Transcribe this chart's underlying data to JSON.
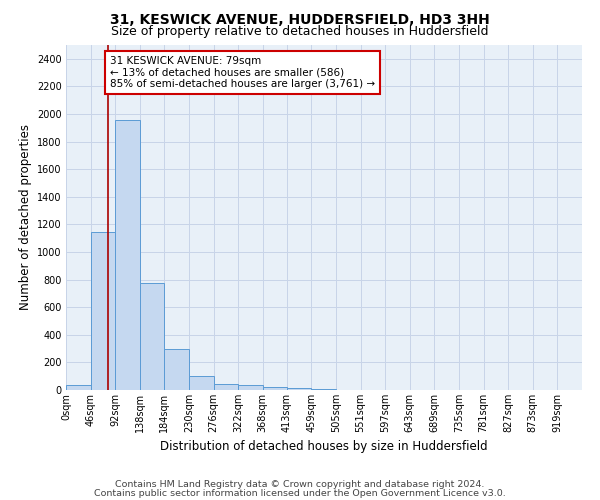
{
  "title1": "31, KESWICK AVENUE, HUDDERSFIELD, HD3 3HH",
  "title2": "Size of property relative to detached houses in Huddersfield",
  "xlabel": "Distribution of detached houses by size in Huddersfield",
  "ylabel": "Number of detached properties",
  "footer1": "Contains HM Land Registry data © Crown copyright and database right 2024.",
  "footer2": "Contains public sector information licensed under the Open Government Licence v3.0.",
  "bin_labels": [
    "0sqm",
    "46sqm",
    "92sqm",
    "138sqm",
    "184sqm",
    "230sqm",
    "276sqm",
    "322sqm",
    "368sqm",
    "413sqm",
    "459sqm",
    "505sqm",
    "551sqm",
    "597sqm",
    "643sqm",
    "689sqm",
    "735sqm",
    "781sqm",
    "827sqm",
    "873sqm",
    "919sqm"
  ],
  "bin_edges": [
    0,
    46,
    92,
    138,
    184,
    230,
    276,
    322,
    368,
    413,
    459,
    505,
    551,
    597,
    643,
    689,
    735,
    781,
    827,
    873,
    919,
    965
  ],
  "bar_heights": [
    35,
    1145,
    1960,
    775,
    300,
    100,
    45,
    35,
    25,
    15,
    10,
    0,
    0,
    0,
    0,
    0,
    0,
    0,
    0,
    0,
    0
  ],
  "bar_color": "#c5d8f0",
  "bar_edge_color": "#5b9bd5",
  "property_size": 79,
  "property_line_color": "#aa0000",
  "annotation_line1": "31 KESWICK AVENUE: 79sqm",
  "annotation_line2": "← 13% of detached houses are smaller (586)",
  "annotation_line3": "85% of semi-detached houses are larger (3,761) →",
  "annotation_box_color": "#ffffff",
  "annotation_box_edge": "#cc0000",
  "ylim": [
    0,
    2500
  ],
  "yticks": [
    0,
    200,
    400,
    600,
    800,
    1000,
    1200,
    1400,
    1600,
    1800,
    2000,
    2200,
    2400
  ],
  "grid_color": "#c8d4e8",
  "bg_color": "#e8f0f8",
  "title1_fontsize": 10,
  "title2_fontsize": 9,
  "axis_label_fontsize": 8.5,
  "tick_fontsize": 7,
  "annotation_fontsize": 7.5,
  "footer_fontsize": 6.8
}
